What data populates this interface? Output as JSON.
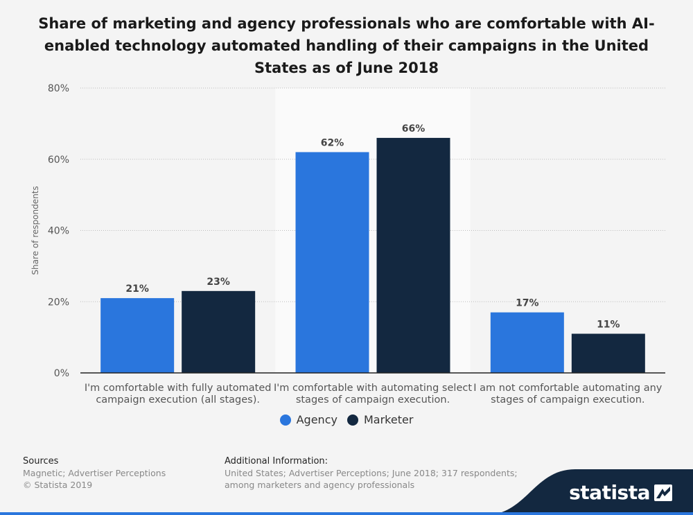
{
  "title": "Share of marketing and agency professionals who are comfortable with AI-enabled technology automated handling of their campaigns in the United States as of June 2018",
  "chart_data": {
    "type": "bar",
    "categories": [
      [
        "I'm comfortable with fully automated",
        "campaign execution (all stages)."
      ],
      [
        "I'm comfortable with automating select",
        "stages of campaign execution."
      ],
      [
        "I am not comfortable automating any",
        "stages of campaign execution."
      ]
    ],
    "series": [
      {
        "name": "Agency",
        "values": [
          21,
          62,
          17
        ],
        "labels": [
          "21%",
          "62%",
          "17%"
        ],
        "color": "#2a76dd"
      },
      {
        "name": "Marketer",
        "values": [
          23,
          66,
          11
        ],
        "labels": [
          "23%",
          "66%",
          "11%"
        ],
        "color": "#132840"
      }
    ],
    "ylabel": "Share of respondents",
    "ylim": [
      0,
      80
    ],
    "yticks": [
      "0%",
      "20%",
      "40%",
      "60%",
      "80%"
    ],
    "grid": true,
    "highlight_category": 1,
    "legend_position": "bottom"
  },
  "footer": {
    "sources_head": "Sources",
    "sources_line1": "Magnetic; Advertiser Perceptions",
    "sources_line2": "© Statista 2019",
    "info_head": "Additional Information:",
    "info_line1": "United States; Advertiser Perceptions; June 2018; 317 respondents;",
    "info_line2": "among marketers and agency professionals"
  },
  "brand": "statista"
}
